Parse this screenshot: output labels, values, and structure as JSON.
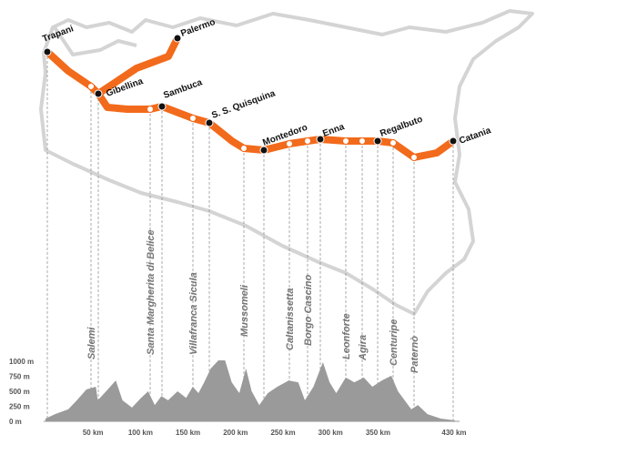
{
  "stops": [
    {
      "label": "Trapani"
    },
    {
      "label": "Palermo"
    },
    {
      "label": "Gibellina"
    },
    {
      "label": "Sambuca"
    },
    {
      "label": "S. S. Quisquina"
    },
    {
      "label": "Montedoro"
    },
    {
      "label": "Enna"
    },
    {
      "label": "Regalbuto"
    },
    {
      "label": "Catania"
    }
  ],
  "towns": [
    {
      "label": "Salemi"
    },
    {
      "label": "Santa Margherita di Belice"
    },
    {
      "label": "Villafranca Sicula"
    },
    {
      "label": "Mussomeli"
    },
    {
      "label": "Caltanissetta"
    },
    {
      "label": "Borgo Cascino"
    },
    {
      "label": "Leonforte"
    },
    {
      "label": "Agira"
    },
    {
      "label": "Centuripe"
    },
    {
      "label": "Paternò"
    }
  ],
  "profile": {
    "distance": [
      0,
      10,
      24,
      33,
      43,
      53,
      55,
      62,
      74,
      81,
      91,
      100,
      108,
      115,
      122,
      129,
      139,
      148,
      155,
      161,
      167,
      174,
      182,
      189,
      196,
      204,
      211,
      217,
      225,
      234,
      244,
      256,
      266,
      273,
      282,
      292,
      299,
      306,
      316,
      325,
      335,
      344,
      354,
      364,
      371,
      378,
      385,
      392,
      402,
      416,
      431
    ],
    "elevation": [
      45,
      120,
      200,
      350,
      530,
      575,
      350,
      470,
      680,
      350,
      230,
      380,
      500,
      270,
      420,
      350,
      500,
      390,
      575,
      470,
      650,
      880,
      1015,
      1015,
      650,
      470,
      880,
      500,
      270,
      470,
      575,
      680,
      650,
      350,
      575,
      985,
      650,
      470,
      730,
      650,
      730,
      575,
      680,
      760,
      500,
      350,
      200,
      270,
      120,
      45,
      15
    ],
    "xlim": [
      0,
      431
    ],
    "ylim": [
      0,
      1000
    ],
    "yticks": [
      {
        "value": 1000,
        "label": "1000 m"
      },
      {
        "value": 750,
        "label": "750 m"
      },
      {
        "value": 500,
        "label": "500 m"
      },
      {
        "value": 250,
        "label": "250 m"
      },
      {
        "value": 0,
        "label": "0 m"
      }
    ],
    "xticks": [
      {
        "value": 50,
        "label": "50 km"
      },
      {
        "value": 100,
        "label": "100 km"
      },
      {
        "value": 150,
        "label": "150 km"
      },
      {
        "value": 200,
        "label": "200 km"
      },
      {
        "value": 250,
        "label": "250 km"
      },
      {
        "value": 300,
        "label": "300 km"
      },
      {
        "value": 350,
        "label": "350 km"
      },
      {
        "value": 430,
        "label": "430 km"
      }
    ],
    "color": "#9a9a9a"
  }
}
